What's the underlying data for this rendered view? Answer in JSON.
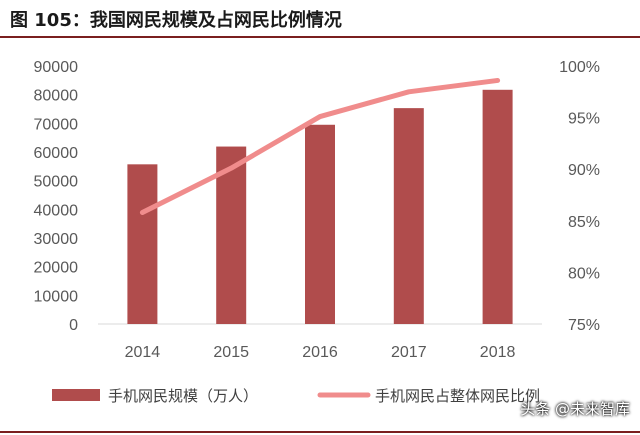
{
  "header": {
    "title": "图 105：我国网民规模及占网民比例情况"
  },
  "colors": {
    "bar": "#b04c4c",
    "line": "#f08c8c",
    "accent_rule": "#7a1f1f"
  },
  "watermark": "头条 @未来智库",
  "chart_data": {
    "type": "bar",
    "categories": [
      "2014",
      "2015",
      "2016",
      "2017",
      "2018"
    ],
    "series": [
      {
        "name": "手机网民规模（万人）",
        "type": "bar",
        "axis": "left",
        "values": [
          55700,
          61900,
          69500,
          75300,
          81700
        ]
      },
      {
        "name": "手机网民占整体网民比例",
        "type": "line",
        "axis": "right",
        "values": [
          85.8,
          90.1,
          95.1,
          97.5,
          98.6
        ]
      }
    ],
    "ylim": [
      0,
      90000
    ],
    "yticks": [
      "0",
      "10000",
      "20000",
      "30000",
      "40000",
      "50000",
      "60000",
      "70000",
      "80000",
      "90000"
    ],
    "y2lim": [
      75,
      100
    ],
    "y2ticks": [
      "75%",
      "80%",
      "85%",
      "90%",
      "95%",
      "100%"
    ],
    "legend": "bottom"
  }
}
